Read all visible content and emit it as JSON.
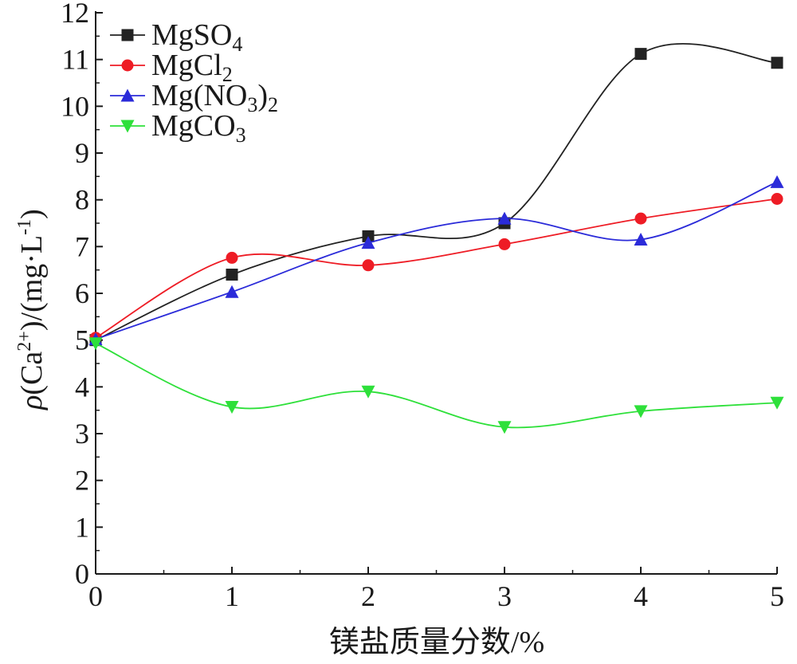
{
  "chart_data": {
    "type": "line",
    "xlabel": "镁盐质量分数/%",
    "ylabel": {
      "rho": "ρ",
      "open": "(Ca",
      "sup": "2+",
      "mid": ")/(mg·L",
      "sup2": "-1",
      "close": ")"
    },
    "x": [
      0,
      1,
      2,
      3,
      4,
      5
    ],
    "xlim": [
      0,
      5
    ],
    "ylim": [
      0,
      12
    ],
    "xticks": [
      "0",
      "1",
      "2",
      "3",
      "4",
      "5"
    ],
    "yticks": [
      "0",
      "1",
      "2",
      "3",
      "4",
      "5",
      "6",
      "7",
      "8",
      "9",
      "10",
      "11",
      "12"
    ],
    "grid": false,
    "legend_position": "top-left",
    "series": [
      {
        "name": "MgSO4",
        "label_main": "MgSO",
        "label_sub": "4",
        "color": "#222222",
        "marker": "square",
        "values": [
          5.0,
          6.4,
          7.22,
          7.5,
          11.12,
          10.93
        ]
      },
      {
        "name": "MgCl2",
        "label_main": "MgCl",
        "label_sub": "2",
        "color": "#ee1c25",
        "marker": "circle",
        "values": [
          5.05,
          6.76,
          6.6,
          7.05,
          7.6,
          8.02
        ]
      },
      {
        "name": "Mg(NO3)2",
        "label_main": "Mg(NO",
        "label_sub": "3",
        "label_tail": ")",
        "label_sub2": "2",
        "color": "#2b2bd9",
        "marker": "triangle-up",
        "values": [
          5.02,
          6.03,
          7.08,
          7.6,
          7.15,
          8.38
        ]
      },
      {
        "name": "MgCO3",
        "label_main": "MgCO",
        "label_sub": "3",
        "color": "#2ee03a",
        "marker": "triangle-down",
        "values": [
          4.93,
          3.57,
          3.9,
          3.14,
          3.48,
          3.66
        ]
      }
    ]
  }
}
